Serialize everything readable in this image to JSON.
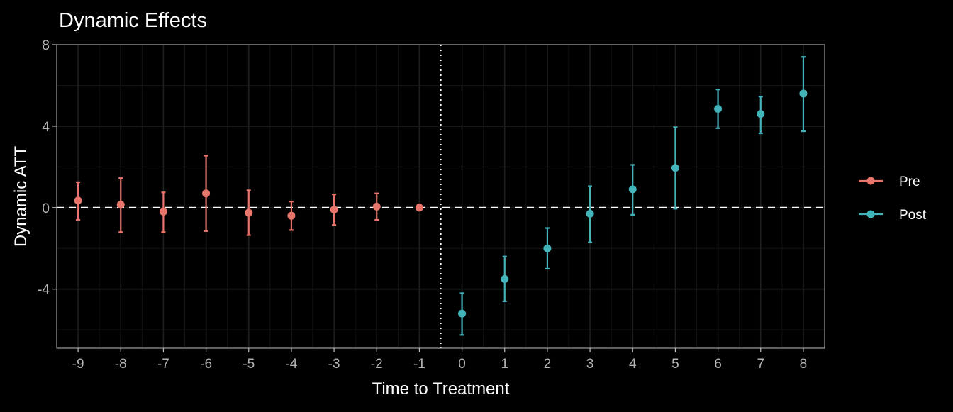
{
  "chart_data": {
    "type": "scatter",
    "title": "Dynamic Effects",
    "xlabel": "Time to Treatment",
    "ylabel": "Dynamic ATT",
    "xlim": [
      -9.5,
      8.5
    ],
    "ylim": [
      -6.9,
      8.0
    ],
    "x_ticks": [
      -9,
      -8,
      -7,
      -6,
      -5,
      -4,
      -3,
      -2,
      -1,
      0,
      1,
      2,
      3,
      4,
      5,
      6,
      7,
      8
    ],
    "x_tick_labels": [
      "-9",
      "-8",
      "-7",
      "-6",
      "-5",
      "-4",
      "-3",
      "-2",
      "-1",
      "0",
      "1",
      "2",
      "3",
      "4",
      "5",
      "6",
      "7",
      "8"
    ],
    "y_ticks": [
      -4,
      0,
      4,
      8
    ],
    "y_tick_labels": [
      "-4",
      "0",
      "4",
      "8"
    ],
    "reference_lines": {
      "horizontal_dashed_y": 0,
      "vertical_dotted_x": -0.5
    },
    "grid": true,
    "legend": {
      "position": "right",
      "entries": [
        {
          "name": "Pre",
          "color": "#E8756C"
        },
        {
          "name": "Post",
          "color": "#44B4BB"
        }
      ]
    },
    "series": [
      {
        "name": "Pre",
        "color": "#E8756C",
        "points": [
          {
            "x": -9,
            "y": 0.35,
            "lo": -0.6,
            "hi": 1.25
          },
          {
            "x": -8,
            "y": 0.15,
            "lo": -1.2,
            "hi": 1.45
          },
          {
            "x": -7,
            "y": -0.2,
            "lo": -1.2,
            "hi": 0.75
          },
          {
            "x": -6,
            "y": 0.7,
            "lo": -1.15,
            "hi": 2.55
          },
          {
            "x": -5,
            "y": -0.25,
            "lo": -1.35,
            "hi": 0.85
          },
          {
            "x": -4,
            "y": -0.4,
            "lo": -1.1,
            "hi": 0.3
          },
          {
            "x": -3,
            "y": -0.1,
            "lo": -0.85,
            "hi": 0.65
          },
          {
            "x": -2,
            "y": 0.05,
            "lo": -0.6,
            "hi": 0.7
          },
          {
            "x": -1,
            "y": 0.0,
            "lo": 0.0,
            "hi": 0.0
          }
        ]
      },
      {
        "name": "Post",
        "color": "#44B4BB",
        "points": [
          {
            "x": 0,
            "y": -5.2,
            "lo": -6.25,
            "hi": -4.2
          },
          {
            "x": 1,
            "y": -3.5,
            "lo": -4.6,
            "hi": -2.4
          },
          {
            "x": 2,
            "y": -2.0,
            "lo": -3.0,
            "hi": -1.0
          },
          {
            "x": 3,
            "y": -0.3,
            "lo": -1.7,
            "hi": 1.05
          },
          {
            "x": 4,
            "y": 0.9,
            "lo": -0.35,
            "hi": 2.1
          },
          {
            "x": 5,
            "y": 1.95,
            "lo": -0.05,
            "hi": 3.95
          },
          {
            "x": 6,
            "y": 4.85,
            "lo": 3.9,
            "hi": 5.8
          },
          {
            "x": 7,
            "y": 4.6,
            "lo": 3.65,
            "hi": 5.45
          },
          {
            "x": 8,
            "y": 5.6,
            "lo": 3.75,
            "hi": 7.4
          }
        ]
      }
    ]
  },
  "colors": {
    "background": "#000000",
    "panel_grid_major": "#1F1F1F",
    "panel_grid_minor": "#141414",
    "panel_border": "#BEBEBE",
    "reference_line": "#FFFFFF",
    "tick_text": "#B3B3B3",
    "title_text": "#FFFFFF"
  }
}
